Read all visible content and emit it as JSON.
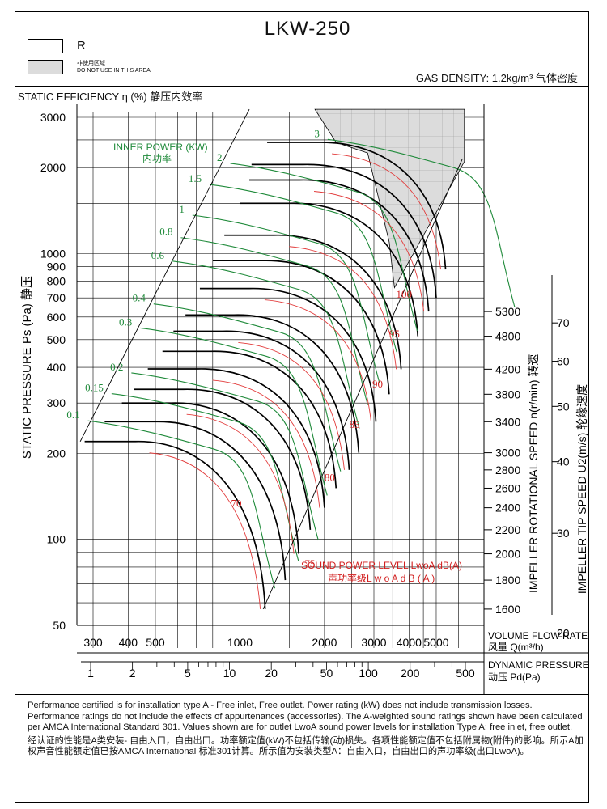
{
  "header": {
    "title": "LKW-250",
    "legend_r": "R",
    "legend_do_not_use_cn": "非使用区域",
    "legend_do_not_use_en": "DO NOT USE IN THIS AREA",
    "gas_density": "GAS DENSITY: 1.2kg/m³ 气体密度",
    "static_efficiency": "STATIC EFFICIENCY η (%) 静压内效率"
  },
  "notes": {
    "en": "Performance certified is for installation type A - Free inlet, Free outlet. Power rating (kW) does not include transmission losses. Performance ratings do not include the effects of appurtenances (accessories). The A-weighted sound ratings shown have been calculated per AMCA International Standard 301. Values shown are for outlet LwoA sound power levels for installation Type A: free inlet, free outlet.",
    "cn": "经认证的性能是A类安装- 自由入口，自由出口。功率额定值(kW)不包括传输(动)损失。各项性能额定值不包括附属物(附件)的影响。所示A加权声音性能额定值已按AMCA International 标准301计算。所示值为安装类型A：自由入口，自由出口的声功率级(出口LwoA)。"
  },
  "colors": {
    "speed_curve": "#000000",
    "power_line": "#1f8a3a",
    "sound_line": "#e23b3b",
    "power_label": "#1f8a3a",
    "sound_label": "#d21f1f",
    "no_use_area": "#dcdcdc"
  },
  "chart_data": {
    "type": "line",
    "title": "LKW-250",
    "xlabel": "VOLUME FLOW RATE 风量 Q(m³/h)",
    "xlabel_en": "VOLUME FLOW RATE",
    "xlabel_cn": "风量 Q(m³/h)",
    "x2label_en": "DYNAMIC PRESSURE",
    "x2label_cn": "动压 Pd(Pa)",
    "ylabel": "STATIC PRESSURE Ps (Pa) 静压",
    "y_right1_label": "IMPELLER ROTATIONAL SPEED n(r/min) 转速",
    "y_right2_label": "IMPELLER TIP SPEED U2(m/s) 轮缘速度",
    "power_title": "INNER POWER (KW)",
    "power_title_cn": "内功率",
    "sound_title": "SOUND POWER LEVEL LwoA dB(A)",
    "sound_title_cn": "声功率级L w o A d B ( A )",
    "x_scale": "log",
    "y_scale": "log",
    "xlim": [
      250,
      6500
    ],
    "ylim": [
      50,
      3200
    ],
    "x_ticks": [
      300,
      400,
      500,
      1000,
      2000,
      3000,
      4000,
      5000
    ],
    "y_ticks": [
      50,
      100,
      200,
      300,
      400,
      500,
      600,
      700,
      800,
      900,
      1000,
      2000,
      3000
    ],
    "pd_ticks": [
      1,
      2,
      5,
      10,
      20,
      50,
      100,
      200,
      500
    ],
    "rpm_ticks": [
      {
        "label": "1600",
        "ps": 57
      },
      {
        "label": "1800",
        "ps": 72
      },
      {
        "label": "2000",
        "ps": 89
      },
      {
        "label": "2200",
        "ps": 108
      },
      {
        "label": "2400",
        "ps": 129
      },
      {
        "label": "2600",
        "ps": 151
      },
      {
        "label": "2800",
        "ps": 175
      },
      {
        "label": "3000",
        "ps": 201
      },
      {
        "label": "3400",
        "ps": 258
      },
      {
        "label": "3800",
        "ps": 322
      },
      {
        "label": "4200",
        "ps": 394
      },
      {
        "label": "4800",
        "ps": 514
      },
      {
        "label": "5300",
        "ps": 627
      }
    ],
    "tip_ticks": [
      {
        "label": "20",
        "ps": 47
      },
      {
        "label": "30",
        "ps": 105
      },
      {
        "label": "40",
        "ps": 187
      },
      {
        "label": "50",
        "ps": 292
      },
      {
        "label": "60",
        "ps": 420
      },
      {
        "label": "70",
        "ps": 572
      }
    ],
    "speed_curves": [
      {
        "ps": 220,
        "q_left": 280,
        "q_end": 1230,
        "ps_end": 57
      },
      {
        "ps": 258,
        "q_left": 330,
        "q_end": 1450,
        "ps_end": 72
      },
      {
        "ps": 300,
        "q_left": 380,
        "q_end": 1620,
        "ps_end": 89
      },
      {
        "ps": 335,
        "q_left": 420,
        "q_end": 1780,
        "ps_end": 108
      },
      {
        "ps": 395,
        "q_left": 470,
        "q_end": 2000,
        "ps_end": 129
      },
      {
        "ps": 455,
        "q_left": 530,
        "q_end": 2200,
        "ps_end": 151
      },
      {
        "ps": 535,
        "q_left": 580,
        "q_end": 2450,
        "ps_end": 175
      },
      {
        "ps": 610,
        "q_left": 640,
        "q_end": 2650,
        "ps_end": 201
      },
      {
        "ps": 755,
        "q_left": 720,
        "q_end": 3050,
        "ps_end": 258
      },
      {
        "ps": 945,
        "q_left": 800,
        "q_end": 3400,
        "ps_end": 322
      },
      {
        "ps": 1160,
        "q_left": 880,
        "q_end": 3750,
        "ps_end": 394
      },
      {
        "ps": 1500,
        "q_left": 1000,
        "q_end": 4300,
        "ps_end": 514
      },
      {
        "ps": 1810,
        "q_left": 1080,
        "q_end": 4700,
        "ps_end": 627
      },
      {
        "ps": 2050,
        "q_left": 1100,
        "q_end": 5000,
        "ps_end": 700
      },
      {
        "ps": 2450,
        "q_left": 1250,
        "q_end": 5400,
        "ps_end": 880
      }
    ],
    "power_lines": [
      {
        "label": "0.1",
        "q": 280,
        "ps": 265
      },
      {
        "label": "0.15",
        "q": 340,
        "ps": 330
      },
      {
        "label": "0.2",
        "q": 400,
        "ps": 390
      },
      {
        "label": "0.3",
        "q": 430,
        "ps": 560
      },
      {
        "label": "0.4",
        "q": 480,
        "ps": 680
      },
      {
        "label": "0.6",
        "q": 560,
        "ps": 960
      },
      {
        "label": "0.8",
        "q": 600,
        "ps": 1160
      },
      {
        "label": "1",
        "q": 660,
        "ps": 1390
      },
      {
        "label": "1.5",
        "q": 760,
        "ps": 1780
      },
      {
        "label": "2",
        "q": 900,
        "ps": 2110
      },
      {
        "label": "3",
        "q": 2000,
        "ps": 2560
      }
    ],
    "sound_lines": [
      {
        "label": "70",
        "q": 930,
        "ps": 130
      },
      {
        "label": "75",
        "q": 1700,
        "ps": 80
      },
      {
        "label": "80",
        "q": 2000,
        "ps": 160
      },
      {
        "label": "85",
        "q": 2450,
        "ps": 245
      },
      {
        "label": "90",
        "q": 2960,
        "ps": 340
      },
      {
        "label": "95",
        "q": 3400,
        "ps": 510
      },
      {
        "label": "100",
        "q": 3600,
        "ps": 700
      }
    ]
  }
}
